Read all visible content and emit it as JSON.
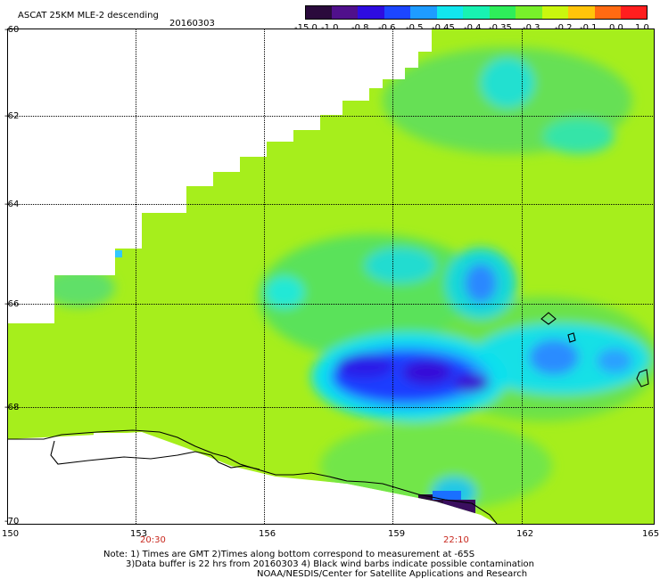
{
  "header": {
    "title": "ASCAT 25KM MLE-2 descending",
    "date": "20160303"
  },
  "colorbar": {
    "labels": [
      "-15.0",
      "-1.0",
      "-0.8",
      "-0.6",
      "-0.5",
      "-0.45",
      "-0.4",
      "-0.35",
      "-0.3",
      "-0.2",
      "-0.1",
      "0.0",
      "1.0"
    ],
    "colors": [
      "#2a0a3c",
      "#50108c",
      "#2e0ce0",
      "#1c46ff",
      "#1e9cff",
      "#12e6ee",
      "#18f2b2",
      "#2eee5a",
      "#78f02a",
      "#caf60e",
      "#ffc40a",
      "#ff6a12",
      "#ff1e1e"
    ]
  },
  "axes": {
    "lat_labels": [
      "-60",
      "-62",
      "-64",
      "-66",
      "-68",
      "-70"
    ],
    "lon_labels": [
      "150",
      "153",
      "156",
      "159",
      "162",
      "165"
    ],
    "times": [
      "20:30",
      "22:10"
    ]
  },
  "notes": [
    "Note: 1) Times are GMT 2)Times along bottom correspond to measurement at -65S",
    "3)Data buffer is 22 hrs from 20160303 4) Black wind barbs indicate possible contamination",
    "NOAA/NESDIS/Center for Satellite Applications and Research"
  ]
}
